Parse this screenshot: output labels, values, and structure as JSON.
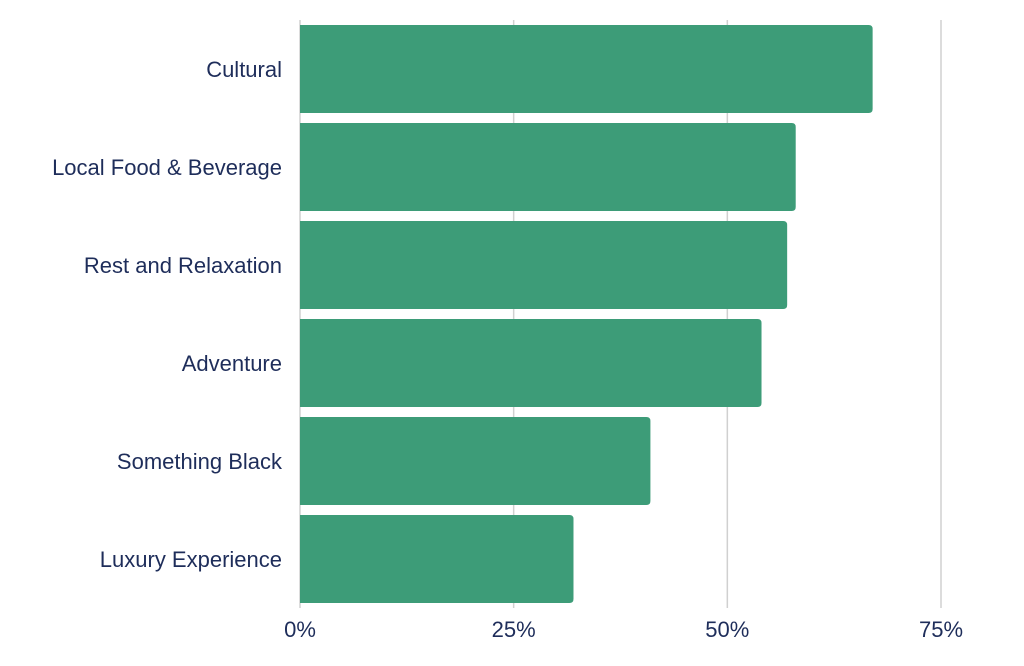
{
  "chart_data": {
    "type": "bar",
    "orientation": "horizontal",
    "categories": [
      "Cultural",
      "Local Food & Beverage",
      "Rest and Relaxation",
      "Adventure",
      "Something Black",
      "Luxury Experience"
    ],
    "values": [
      67,
      58,
      57,
      54,
      41,
      32
    ],
    "unit": "%",
    "xlim": [
      0,
      75
    ],
    "xticks": [
      0,
      25,
      50,
      75
    ],
    "xtick_labels": [
      "0%",
      "25%",
      "50%",
      "75%"
    ],
    "grid": "vertical",
    "legend": "none",
    "title": "",
    "xlabel": "",
    "ylabel": "",
    "colors": {
      "bar": "#3d9c78",
      "text": "#1e2d5a",
      "grid": "#d0d0d0"
    }
  }
}
